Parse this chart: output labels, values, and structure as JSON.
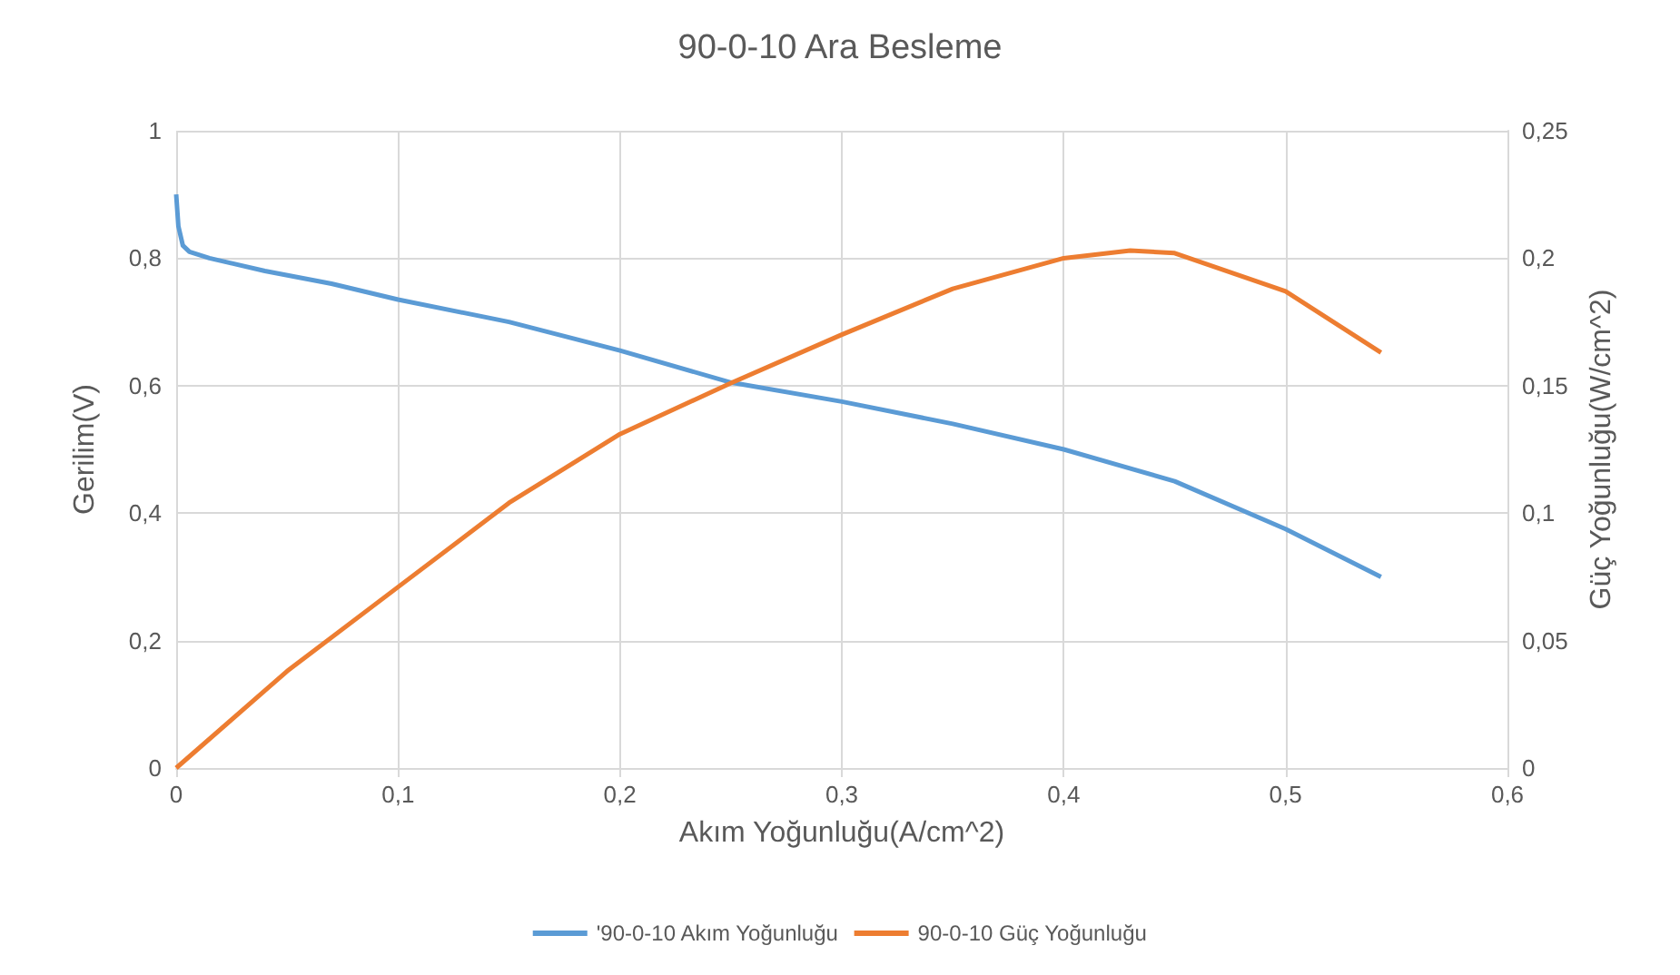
{
  "chart_data": {
    "type": "line",
    "title": "90-0-10 Ara Besleme",
    "xlabel": "Akım Yoğunluğu(A/cm^2)",
    "ylabel": "Gerilim(V)",
    "y2label": "Güç Yoğunluğu(W/cm^2)",
    "xlim": [
      0,
      0.6
    ],
    "xticks": [
      0,
      {
        "value": 0.1,
        "label": "0,1"
      },
      {
        "value": 0.2,
        "label": "0,2"
      },
      {
        "value": 0.3,
        "label": "0,3"
      },
      {
        "value": 0.4,
        "label": "0,4"
      },
      {
        "value": 0.5,
        "label": "0,5"
      },
      {
        "value": 0.6,
        "label": "0,6"
      }
    ],
    "ylim": [
      0,
      1
    ],
    "yticks": [
      0,
      {
        "value": 0.2,
        "label": "0,2"
      },
      {
        "value": 0.4,
        "label": "0,4"
      },
      {
        "value": 0.6,
        "label": "0,6"
      },
      {
        "value": 0.8,
        "label": "0,8"
      },
      1
    ],
    "y2lim": [
      0,
      0.25
    ],
    "y2ticks": [
      0,
      {
        "value": 0.05,
        "label": "0,05"
      },
      {
        "value": 0.1,
        "label": "0,1"
      },
      {
        "value": 0.15,
        "label": "0,15"
      },
      {
        "value": 0.2,
        "label": "0,2"
      },
      {
        "value": 0.25,
        "label": "0,25"
      }
    ],
    "grid": true,
    "legend": "bottom",
    "marker": "none",
    "line_style": "solid",
    "series": [
      {
        "name": "'90-0-10 Akım Yoğunluğu",
        "color": "#5b9bd5",
        "x": [
          0,
          0.001,
          0.003,
          0.006,
          0.015,
          0.04,
          0.07,
          0.1,
          0.15,
          0.2,
          0.25,
          0.3,
          0.35,
          0.4,
          0.45,
          0.5,
          0.543
        ],
        "values": [
          0.9,
          0.85,
          0.82,
          0.81,
          0.8,
          0.78,
          0.76,
          0.735,
          0.7,
          0.655,
          0.605,
          0.575,
          0.54,
          0.5,
          0.45,
          0.375,
          0.3
        ]
      },
      {
        "name": "90-0-10 Güç Yoğunluğu",
        "color": "#ed7d31",
        "axis": "y2",
        "x": [
          0,
          0.05,
          0.1,
          0.15,
          0.2,
          0.25,
          0.3,
          0.35,
          0.4,
          0.43,
          0.45,
          0.5,
          0.543
        ],
        "values": [
          0,
          0.038,
          0.071,
          0.104,
          0.131,
          0.151,
          0.17,
          0.188,
          0.2,
          0.203,
          0.202,
          0.187,
          0.163
        ]
      }
    ]
  }
}
